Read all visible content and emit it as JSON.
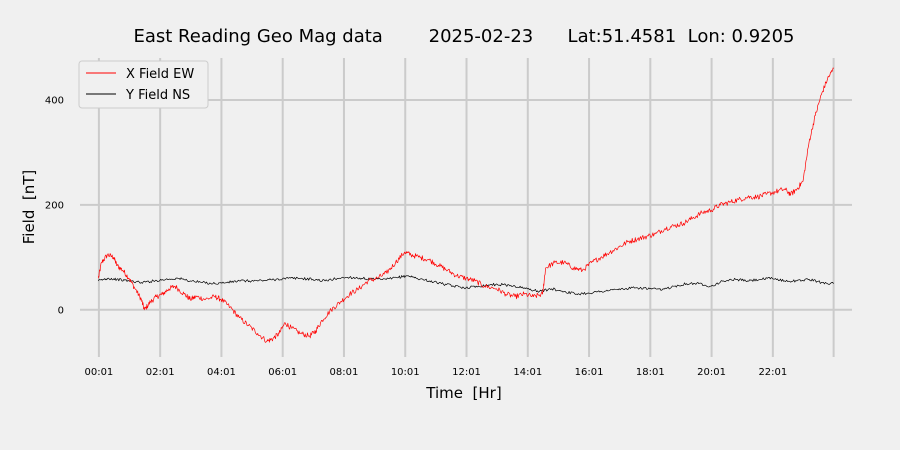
{
  "chart_data": {
    "type": "line",
    "title": "East Reading Geo Mag data        2025-02-23      Lat:51.4581  Lon: 0.9205",
    "xlabel": "Time  [Hr]",
    "ylabel": "Field  [nT]",
    "x_range_hours": [
      -0.6,
      24.6
    ],
    "ylim": [
      -90,
      480
    ],
    "x_ticks": [
      {
        "hour": 0.0167,
        "label": "00:01"
      },
      {
        "hour": 2.0167,
        "label": "02:01"
      },
      {
        "hour": 4.0167,
        "label": "04:01"
      },
      {
        "hour": 6.0167,
        "label": "06:01"
      },
      {
        "hour": 8.0167,
        "label": "08:01"
      },
      {
        "hour": 10.0167,
        "label": "10:01"
      },
      {
        "hour": 12.0167,
        "label": "12:01"
      },
      {
        "hour": 14.0167,
        "label": "14:01"
      },
      {
        "hour": 16.0167,
        "label": "16:01"
      },
      {
        "hour": 18.0167,
        "label": "18:01"
      },
      {
        "hour": 20.0167,
        "label": "20:01"
      },
      {
        "hour": 22.0167,
        "label": "22:01"
      }
    ],
    "extra_gridlines_hours": [
      24.0
    ],
    "y_ticks": [
      0,
      200,
      400
    ],
    "grid": true,
    "legend_position": "top-left",
    "series": [
      {
        "name": "X Field EW",
        "color": "#ff0000",
        "points": [
          [
            0.0,
            60
          ],
          [
            0.1,
            90
          ],
          [
            0.3,
            105
          ],
          [
            0.5,
            100
          ],
          [
            0.6,
            85
          ],
          [
            0.8,
            75
          ],
          [
            1.0,
            60
          ],
          [
            1.2,
            40
          ],
          [
            1.4,
            20
          ],
          [
            1.5,
            0
          ],
          [
            1.7,
            15
          ],
          [
            1.9,
            25
          ],
          [
            2.1,
            30
          ],
          [
            2.3,
            40
          ],
          [
            2.5,
            45
          ],
          [
            2.8,
            30
          ],
          [
            3.0,
            20
          ],
          [
            3.2,
            25
          ],
          [
            3.5,
            20
          ],
          [
            3.8,
            25
          ],
          [
            4.0,
            20
          ],
          [
            4.3,
            5
          ],
          [
            4.6,
            -15
          ],
          [
            4.9,
            -30
          ],
          [
            5.2,
            -45
          ],
          [
            5.5,
            -60
          ],
          [
            5.7,
            -55
          ],
          [
            5.9,
            -45
          ],
          [
            6.1,
            -25
          ],
          [
            6.3,
            -35
          ],
          [
            6.6,
            -45
          ],
          [
            6.9,
            -50
          ],
          [
            7.1,
            -40
          ],
          [
            7.3,
            -20
          ],
          [
            7.6,
            0
          ],
          [
            7.9,
            15
          ],
          [
            8.2,
            30
          ],
          [
            8.5,
            40
          ],
          [
            8.8,
            55
          ],
          [
            9.1,
            60
          ],
          [
            9.4,
            70
          ],
          [
            9.7,
            90
          ],
          [
            10.0,
            110
          ],
          [
            10.2,
            105
          ],
          [
            10.5,
            100
          ],
          [
            10.8,
            95
          ],
          [
            11.1,
            85
          ],
          [
            11.4,
            75
          ],
          [
            11.7,
            65
          ],
          [
            12.0,
            60
          ],
          [
            12.3,
            55
          ],
          [
            12.6,
            45
          ],
          [
            13.0,
            40
          ],
          [
            13.3,
            30
          ],
          [
            13.6,
            25
          ],
          [
            13.9,
            30
          ],
          [
            14.2,
            25
          ],
          [
            14.5,
            30
          ],
          [
            14.6,
            80
          ],
          [
            14.9,
            90
          ],
          [
            15.2,
            90
          ],
          [
            15.5,
            80
          ],
          [
            15.8,
            75
          ],
          [
            16.1,
            90
          ],
          [
            16.4,
            100
          ],
          [
            16.7,
            110
          ],
          [
            17.0,
            120
          ],
          [
            17.3,
            130
          ],
          [
            17.6,
            135
          ],
          [
            17.9,
            140
          ],
          [
            18.2,
            145
          ],
          [
            18.5,
            155
          ],
          [
            18.8,
            160
          ],
          [
            19.1,
            165
          ],
          [
            19.4,
            175
          ],
          [
            19.7,
            185
          ],
          [
            20.0,
            190
          ],
          [
            20.3,
            200
          ],
          [
            20.6,
            205
          ],
          [
            20.9,
            210
          ],
          [
            21.2,
            215
          ],
          [
            21.5,
            215
          ],
          [
            21.8,
            220
          ],
          [
            22.1,
            225
          ],
          [
            22.4,
            230
          ],
          [
            22.6,
            220
          ],
          [
            22.8,
            230
          ],
          [
            23.0,
            245
          ],
          [
            23.2,
            320
          ],
          [
            23.4,
            370
          ],
          [
            23.6,
            410
          ],
          [
            23.8,
            440
          ],
          [
            24.0,
            460
          ]
        ]
      },
      {
        "name": "Y Field NS",
        "color": "#000000",
        "points": [
          [
            0.0,
            55
          ],
          [
            0.3,
            60
          ],
          [
            0.6,
            58
          ],
          [
            1.0,
            55
          ],
          [
            1.4,
            52
          ],
          [
            1.8,
            55
          ],
          [
            2.2,
            58
          ],
          [
            2.6,
            60
          ],
          [
            3.0,
            55
          ],
          [
            3.4,
            52
          ],
          [
            3.8,
            50
          ],
          [
            4.2,
            52
          ],
          [
            4.6,
            55
          ],
          [
            5.0,
            55
          ],
          [
            5.4,
            56
          ],
          [
            5.8,
            58
          ],
          [
            6.2,
            60
          ],
          [
            6.6,
            60
          ],
          [
            7.0,
            58
          ],
          [
            7.4,
            55
          ],
          [
            7.8,
            60
          ],
          [
            8.2,
            62
          ],
          [
            8.6,
            60
          ],
          [
            9.0,
            58
          ],
          [
            9.4,
            58
          ],
          [
            9.8,
            62
          ],
          [
            10.1,
            65
          ],
          [
            10.4,
            60
          ],
          [
            10.8,
            55
          ],
          [
            11.2,
            50
          ],
          [
            11.6,
            45
          ],
          [
            12.0,
            42
          ],
          [
            12.4,
            45
          ],
          [
            12.8,
            48
          ],
          [
            13.2,
            48
          ],
          [
            13.6,
            45
          ],
          [
            14.0,
            40
          ],
          [
            14.4,
            35
          ],
          [
            14.8,
            40
          ],
          [
            15.2,
            35
          ],
          [
            15.6,
            30
          ],
          [
            16.0,
            32
          ],
          [
            16.4,
            35
          ],
          [
            16.8,
            38
          ],
          [
            17.2,
            40
          ],
          [
            17.6,
            42
          ],
          [
            18.0,
            40
          ],
          [
            18.4,
            38
          ],
          [
            18.8,
            45
          ],
          [
            19.2,
            50
          ],
          [
            19.6,
            50
          ],
          [
            20.0,
            45
          ],
          [
            20.4,
            55
          ],
          [
            20.8,
            58
          ],
          [
            21.2,
            55
          ],
          [
            21.6,
            58
          ],
          [
            22.0,
            60
          ],
          [
            22.4,
            55
          ],
          [
            22.8,
            55
          ],
          [
            23.2,
            58
          ],
          [
            23.6,
            52
          ],
          [
            24.0,
            50
          ]
        ]
      }
    ]
  }
}
